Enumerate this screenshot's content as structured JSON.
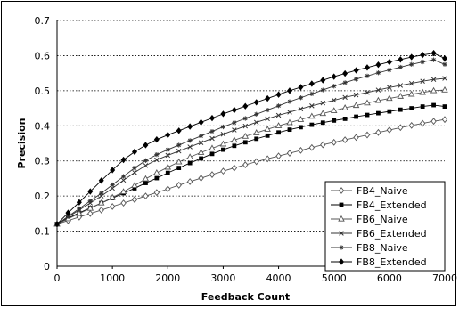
{
  "chart_data": {
    "type": "line",
    "title": "",
    "xlabel": "Feedback Count",
    "ylabel": "Precision",
    "xlim": [
      0,
      7000
    ],
    "ylim": [
      0,
      0.7
    ],
    "xticks": [
      "0",
      "1000",
      "2000",
      "3000",
      "4000",
      "5000",
      "6000",
      "7000"
    ],
    "yticks": [
      "0",
      "0.1",
      "0.2",
      "0.3",
      "0.4",
      "0.5",
      "0.6",
      "0.7"
    ],
    "grid": "horizontal dotted",
    "legend_position": "bottom-right",
    "x": [
      0,
      200,
      400,
      600,
      800,
      1000,
      1200,
      1400,
      1600,
      1800,
      2000,
      2200,
      2400,
      2600,
      2800,
      3000,
      3200,
      3400,
      3600,
      3800,
      4000,
      4200,
      4400,
      4600,
      4800,
      5000,
      5200,
      5400,
      5600,
      5800,
      6000,
      6200,
      6400,
      6600,
      6800,
      7000
    ],
    "series": [
      {
        "name": "FB4_Naive",
        "marker": "open-diamond",
        "color": "#555555",
        "values": [
          0.12,
          0.13,
          0.14,
          0.15,
          0.16,
          0.17,
          0.18,
          0.19,
          0.2,
          0.21,
          0.22,
          0.231,
          0.241,
          0.251,
          0.261,
          0.271,
          0.28,
          0.289,
          0.298,
          0.306,
          0.314,
          0.322,
          0.33,
          0.338,
          0.346,
          0.353,
          0.36,
          0.367,
          0.374,
          0.381,
          0.388,
          0.395,
          0.401,
          0.407,
          0.413,
          0.418
        ]
      },
      {
        "name": "FB4_Extended",
        "marker": "filled-square",
        "color": "#000000",
        "values": [
          0.12,
          0.137,
          0.152,
          0.166,
          0.18,
          0.194,
          0.208,
          0.222,
          0.237,
          0.251,
          0.266,
          0.28,
          0.294,
          0.307,
          0.32,
          0.332,
          0.343,
          0.353,
          0.363,
          0.372,
          0.381,
          0.389,
          0.396,
          0.403,
          0.409,
          0.415,
          0.42,
          0.426,
          0.431,
          0.436,
          0.441,
          0.446,
          0.45,
          0.455,
          0.459,
          0.455
        ]
      },
      {
        "name": "FB6_Naive",
        "marker": "open-triangle",
        "color": "#555555",
        "values": [
          0.12,
          0.135,
          0.15,
          0.165,
          0.18,
          0.196,
          0.212,
          0.23,
          0.249,
          0.266,
          0.282,
          0.297,
          0.311,
          0.324,
          0.336,
          0.348,
          0.359,
          0.37,
          0.38,
          0.39,
          0.4,
          0.409,
          0.418,
          0.427,
          0.435,
          0.443,
          0.451,
          0.458,
          0.465,
          0.472,
          0.478,
          0.484,
          0.49,
          0.495,
          0.5,
          0.502
        ]
      },
      {
        "name": "FB6_Extended",
        "marker": "x",
        "color": "#333333",
        "values": [
          0.12,
          0.14,
          0.16,
          0.18,
          0.2,
          0.222,
          0.245,
          0.267,
          0.287,
          0.303,
          0.316,
          0.328,
          0.34,
          0.352,
          0.364,
          0.376,
          0.388,
          0.399,
          0.41,
          0.42,
          0.43,
          0.439,
          0.448,
          0.457,
          0.465,
          0.473,
          0.481,
          0.488,
          0.495,
          0.502,
          0.509,
          0.515,
          0.521,
          0.527,
          0.532,
          0.535
        ]
      },
      {
        "name": "FB8_Naive",
        "marker": "star",
        "color": "#333333",
        "values": [
          0.12,
          0.142,
          0.164,
          0.186,
          0.208,
          0.232,
          0.256,
          0.28,
          0.301,
          0.318,
          0.332,
          0.345,
          0.358,
          0.371,
          0.384,
          0.397,
          0.409,
          0.421,
          0.433,
          0.445,
          0.457,
          0.469,
          0.48,
          0.491,
          0.502,
          0.513,
          0.523,
          0.533,
          0.542,
          0.551,
          0.559,
          0.567,
          0.575,
          0.582,
          0.588,
          0.575
        ]
      },
      {
        "name": "FB8_Extended",
        "marker": "filled-diamond",
        "color": "#000000",
        "values": [
          0.12,
          0.152,
          0.182,
          0.213,
          0.244,
          0.274,
          0.303,
          0.326,
          0.345,
          0.361,
          0.374,
          0.386,
          0.398,
          0.41,
          0.422,
          0.434,
          0.445,
          0.456,
          0.467,
          0.478,
          0.489,
          0.5,
          0.51,
          0.52,
          0.53,
          0.54,
          0.549,
          0.558,
          0.566,
          0.574,
          0.582,
          0.589,
          0.596,
          0.602,
          0.607,
          0.592
        ]
      }
    ]
  }
}
